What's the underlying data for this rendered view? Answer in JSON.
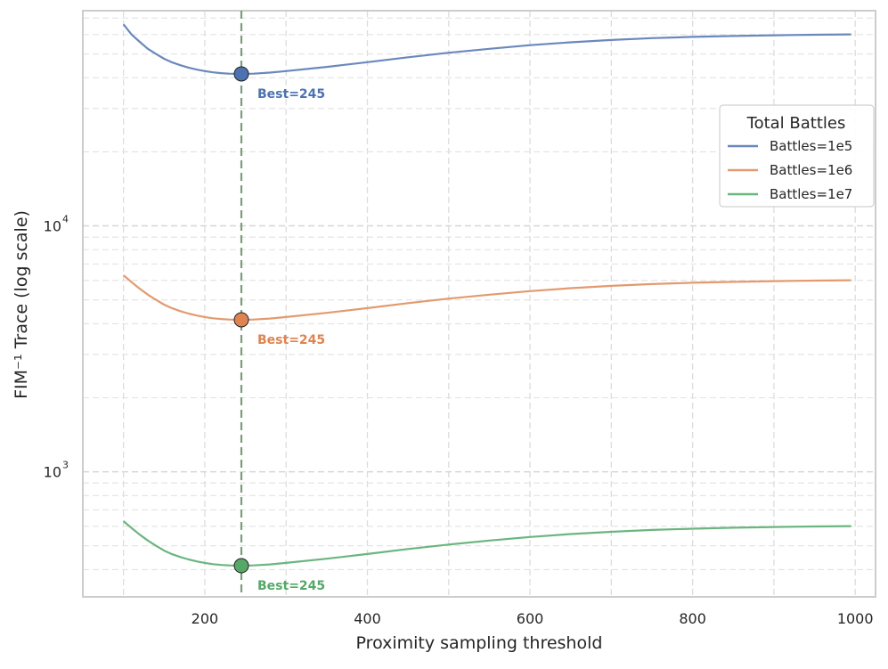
{
  "chart_data": {
    "type": "line",
    "title": "",
    "xlabel": "Proximity sampling threshold",
    "ylabel": "FIM⁻¹ Trace (log scale)",
    "xlim": [
      50,
      1025
    ],
    "ylim": [
      310,
      75000
    ],
    "yscale": "log",
    "grid": true,
    "x_ticks": [
      200,
      400,
      600,
      800,
      1000
    ],
    "y_ticks": [
      {
        "base": "10",
        "exp": "3",
        "value": 1000
      },
      {
        "base": "10",
        "exp": "4",
        "value": 10000
      }
    ],
    "legend": {
      "title": "Total Battles",
      "placement": "upper-right"
    },
    "best_marker_x": 245,
    "series": [
      {
        "name": "Battles=1e5",
        "color": "#6b88bd",
        "marker_color": "#4c72b0",
        "label_color": "#4c72b0",
        "best_label": "Best=245",
        "best_value": 41500,
        "x": [
          100,
          110,
          120,
          130,
          140,
          150,
          160,
          170,
          180,
          190,
          200,
          210,
          220,
          230,
          245,
          260,
          280,
          300,
          350,
          400,
          450,
          500,
          550,
          600,
          650,
          700,
          750,
          800,
          850,
          900,
          950,
          995
        ],
        "values": [
          66000,
          60000,
          56000,
          52500,
          50000,
          47800,
          46200,
          45000,
          44000,
          43200,
          42600,
          42100,
          41800,
          41600,
          41500,
          41600,
          42000,
          42600,
          44300,
          46300,
          48500,
          50600,
          52500,
          54300,
          55800,
          57000,
          58000,
          58700,
          59200,
          59600,
          59900,
          60100
        ]
      },
      {
        "name": "Battles=1e6",
        "color": "#e39a6e",
        "marker_color": "#dd8452",
        "label_color": "#dd8452",
        "best_label": "Best=245",
        "best_value": 4150,
        "x": [
          100,
          110,
          120,
          130,
          140,
          150,
          160,
          170,
          180,
          190,
          200,
          210,
          220,
          230,
          245,
          260,
          280,
          300,
          350,
          400,
          450,
          500,
          550,
          600,
          650,
          700,
          750,
          800,
          850,
          900,
          950,
          995
        ],
        "values": [
          6300,
          5900,
          5550,
          5250,
          5000,
          4780,
          4620,
          4500,
          4400,
          4320,
          4260,
          4210,
          4180,
          4160,
          4150,
          4160,
          4200,
          4260,
          4430,
          4630,
          4850,
          5060,
          5250,
          5430,
          5580,
          5700,
          5800,
          5870,
          5920,
          5960,
          5990,
          6010
        ]
      },
      {
        "name": "Battles=1e7",
        "color": "#6bb57f",
        "marker_color": "#55a868",
        "label_color": "#55a868",
        "best_label": "Best=245",
        "best_value": 415,
        "x": [
          100,
          110,
          120,
          130,
          140,
          150,
          160,
          170,
          180,
          190,
          200,
          210,
          220,
          230,
          245,
          260,
          280,
          300,
          350,
          400,
          450,
          500,
          550,
          600,
          650,
          700,
          750,
          800,
          850,
          900,
          950,
          995
        ],
        "values": [
          630,
          590,
          555,
          525,
          500,
          478,
          462,
          450,
          440,
          432,
          426,
          421,
          418,
          416,
          415,
          416,
          420,
          426,
          443,
          463,
          485,
          506,
          525,
          543,
          558,
          570,
          580,
          587,
          592,
          596,
          599,
          601
        ]
      }
    ],
    "vline_color": "#7a9d7a"
  }
}
